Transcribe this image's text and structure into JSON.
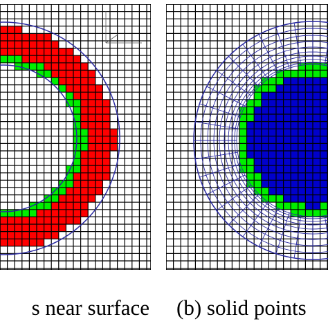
{
  "captions": {
    "left": "s near surface",
    "right": "(b) solid points"
  }
}
